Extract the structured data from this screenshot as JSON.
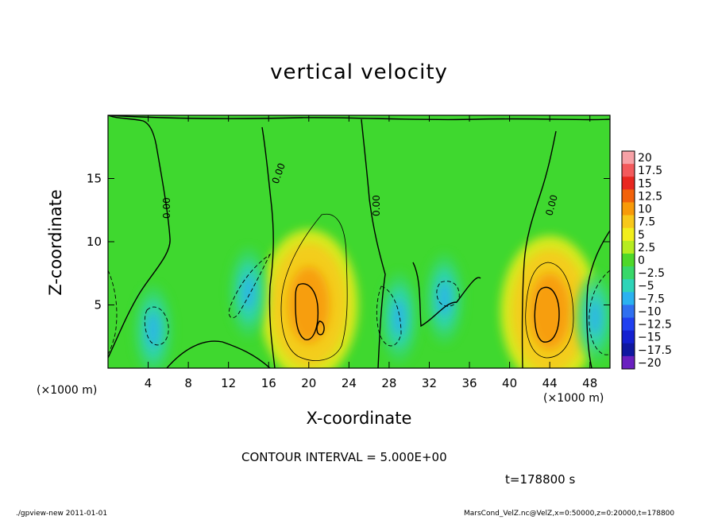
{
  "chart_data": {
    "type": "heatmap",
    "title": "vertical velocity",
    "xlabel": "X-coordinate",
    "ylabel": "Z-coordinate",
    "x_unit_label": "(×1000 m)",
    "xlim": [
      0,
      50
    ],
    "ylim": [
      0,
      20
    ],
    "x_ticks": [
      4,
      8,
      12,
      16,
      20,
      24,
      28,
      32,
      36,
      40,
      44,
      48
    ],
    "y_ticks": [
      5,
      10,
      15
    ],
    "colorbar": {
      "labels": [
        "20",
        "17.5",
        "15",
        "12.5",
        "10",
        "7.5",
        "5",
        "2.5",
        "0",
        "−2.5",
        "−5",
        "−7.5",
        "−10",
        "−12.5",
        "−15",
        "−17.5",
        "−20"
      ],
      "colors": [
        "#f7a1a6",
        "#f35a5c",
        "#e8271f",
        "#f2620b",
        "#f89a09",
        "#f8c81a",
        "#f2ee1c",
        "#b6ec20",
        "#4ed82a",
        "#38d86a",
        "#2ed4b8",
        "#2bb2f0",
        "#3070f0",
        "#2040f0",
        "#1420d0",
        "#1018a0",
        "#6a20c0"
      ]
    },
    "contour_labels": [
      "0.00",
      "0.00",
      "0.00",
      "0.00"
    ],
    "features": [
      {
        "x": 20,
        "z": 5,
        "value": 10
      },
      {
        "x": 44,
        "z": 4.5,
        "value": 10
      },
      {
        "x": 14,
        "z": 6,
        "value": -7.5
      },
      {
        "x": 4.5,
        "z": 3,
        "value": -7.5
      },
      {
        "x": 29,
        "z": 4,
        "value": -7.5
      },
      {
        "x": 33.5,
        "z": 5.5,
        "value": -7.5
      },
      {
        "x": 48.5,
        "z": 4,
        "value": -7.5
      }
    ]
  },
  "text": {
    "contour_interval": "CONTOUR INTERVAL = 5.000E+00",
    "time": "t=178800 s",
    "footer_left": "./gpview-new   2011-01-01",
    "footer_right": "MarsCond_VelZ.nc@VelZ,x=0:50000,z=0:20000,t=178800"
  },
  "colors": {
    "background_field": "#3fd82f",
    "contour": "#000000"
  }
}
